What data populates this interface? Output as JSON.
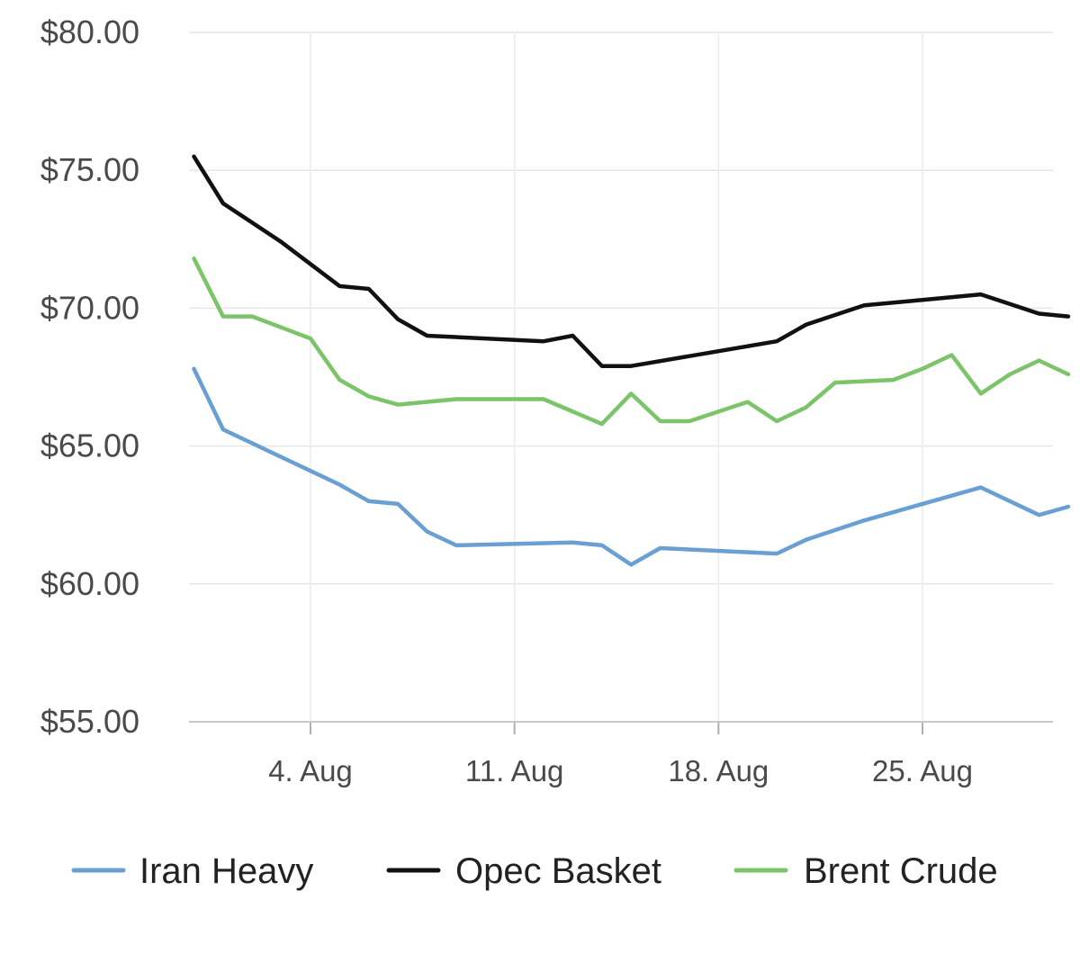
{
  "chart_data": {
    "type": "line",
    "title": "",
    "xlabel": "",
    "ylabel": "",
    "x_range": [
      "2018-07-29",
      "2018-08-29"
    ],
    "ylim": [
      55,
      80
    ],
    "yticks": [
      55,
      60,
      65,
      70,
      75,
      80
    ],
    "ytick_labels": [
      "$55.00",
      "$60.00",
      "$65.00",
      "$70.00",
      "$75.00",
      "$80.00"
    ],
    "xticks": [
      "2018-08-04",
      "2018-08-11",
      "2018-08-18",
      "2018-08-25"
    ],
    "xtick_labels": [
      "4. Aug",
      "11. Aug",
      "18. Aug",
      "25. Aug"
    ],
    "grid": true,
    "legend_position": "bottom",
    "series": [
      {
        "name": "Iran Heavy",
        "color": "#6a9fd4",
        "points": [
          [
            "2018-07-31",
            67.8
          ],
          [
            "2018-08-01",
            65.6
          ],
          [
            "2018-08-02",
            65.1
          ],
          [
            "2018-08-03",
            64.6
          ],
          [
            "2018-08-04",
            64.1
          ],
          [
            "2018-08-05",
            63.6
          ],
          [
            "2018-08-06",
            63.0
          ],
          [
            "2018-08-07",
            62.9
          ],
          [
            "2018-08-08",
            61.9
          ],
          [
            "2018-08-09",
            61.4
          ],
          [
            "2018-08-13",
            61.5
          ],
          [
            "2018-08-14",
            61.4
          ],
          [
            "2018-08-15",
            60.7
          ],
          [
            "2018-08-16",
            61.3
          ],
          [
            "2018-08-20",
            61.1
          ],
          [
            "2018-08-21",
            61.6
          ],
          [
            "2018-08-23",
            62.3
          ],
          [
            "2018-08-25",
            62.9
          ],
          [
            "2018-08-27",
            63.5
          ],
          [
            "2018-08-29",
            62.5
          ],
          [
            "2018-08-30",
            62.8
          ]
        ]
      },
      {
        "name": "Opec Basket",
        "color": "#111111",
        "points": [
          [
            "2018-07-31",
            75.5
          ],
          [
            "2018-08-01",
            73.8
          ],
          [
            "2018-08-02",
            73.1
          ],
          [
            "2018-08-03",
            72.4
          ],
          [
            "2018-08-04",
            71.6
          ],
          [
            "2018-08-05",
            70.8
          ],
          [
            "2018-08-06",
            70.7
          ],
          [
            "2018-08-07",
            69.6
          ],
          [
            "2018-08-08",
            69.0
          ],
          [
            "2018-08-12",
            68.8
          ],
          [
            "2018-08-13",
            69.0
          ],
          [
            "2018-08-14",
            67.9
          ],
          [
            "2018-08-15",
            67.9
          ],
          [
            "2018-08-20",
            68.8
          ],
          [
            "2018-08-21",
            69.4
          ],
          [
            "2018-08-23",
            70.1
          ],
          [
            "2018-08-25",
            70.3
          ],
          [
            "2018-08-27",
            70.5
          ],
          [
            "2018-08-29",
            69.8
          ],
          [
            "2018-08-30",
            69.7
          ]
        ]
      },
      {
        "name": "Brent Crude",
        "color": "#7cc46a",
        "points": [
          [
            "2018-07-31",
            71.8
          ],
          [
            "2018-08-01",
            69.7
          ],
          [
            "2018-08-02",
            69.7
          ],
          [
            "2018-08-03",
            69.3
          ],
          [
            "2018-08-04",
            68.9
          ],
          [
            "2018-08-05",
            67.4
          ],
          [
            "2018-08-06",
            66.8
          ],
          [
            "2018-08-07",
            66.5
          ],
          [
            "2018-08-09",
            66.7
          ],
          [
            "2018-08-12",
            66.7
          ],
          [
            "2018-08-14",
            65.8
          ],
          [
            "2018-08-15",
            66.9
          ],
          [
            "2018-08-16",
            65.9
          ],
          [
            "2018-08-17",
            65.9
          ],
          [
            "2018-08-19",
            66.6
          ],
          [
            "2018-08-20",
            65.9
          ],
          [
            "2018-08-21",
            66.4
          ],
          [
            "2018-08-22",
            67.3
          ],
          [
            "2018-08-24",
            67.4
          ],
          [
            "2018-08-25",
            67.8
          ],
          [
            "2018-08-26",
            68.3
          ],
          [
            "2018-08-27",
            66.9
          ],
          [
            "2018-08-28",
            67.6
          ],
          [
            "2018-08-29",
            68.1
          ],
          [
            "2018-08-30",
            67.6
          ]
        ]
      }
    ]
  },
  "legend": [
    {
      "name": "Iran Heavy",
      "color": "#6a9fd4"
    },
    {
      "name": "Opec Basket",
      "color": "#111111"
    },
    {
      "name": "Brent Crude",
      "color": "#7cc46a"
    }
  ]
}
